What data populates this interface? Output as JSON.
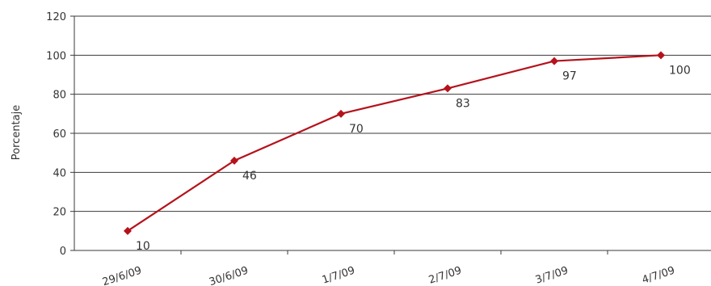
{
  "chart_data": {
    "type": "line",
    "title": "",
    "xlabel": "",
    "ylabel": "Porcentaje",
    "categories": [
      "29/6/09",
      "30/6/09",
      "1/7/09",
      "2/7/09",
      "3/7/09",
      "4/7/09"
    ],
    "series": [
      {
        "values": [
          10,
          46,
          70,
          83,
          97,
          100
        ],
        "color": "#b5121b",
        "marker": "diamond"
      }
    ],
    "data_labels": [
      "10",
      "46",
      "70",
      "83",
      "97",
      "100"
    ],
    "ylim": [
      0,
      120
    ],
    "yticks": [
      0,
      20,
      40,
      60,
      80,
      100,
      120
    ],
    "grid": "horizontal",
    "legend": "none"
  }
}
